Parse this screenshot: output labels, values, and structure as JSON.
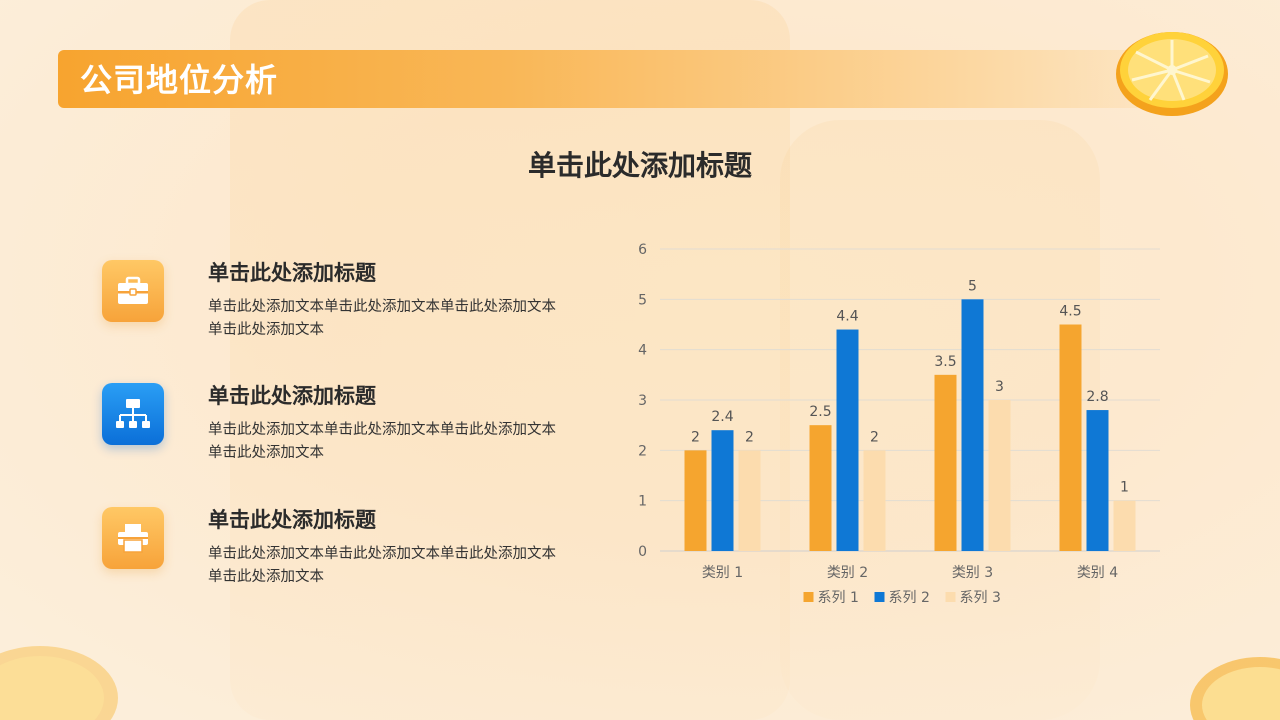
{
  "header": {
    "title": "公司地位分析"
  },
  "subtitle": "单击此处添加标题",
  "items": [
    {
      "icon": "briefcase-icon",
      "title": "单击此处添加标题",
      "text": "单击此处添加文本单击此处添加文本单击此处添加文本单击此处添加文本"
    },
    {
      "icon": "org-chart-icon",
      "title": "单击此处添加标题",
      "text": "单击此处添加文本单击此处添加文本单击此处添加文本单击此处添加文本"
    },
    {
      "icon": "printer-icon",
      "title": "单击此处添加标题",
      "text": "单击此处添加文本单击此处添加文本单击此处添加文本单击此处添加文本"
    }
  ],
  "colors": {
    "accent": "#f7a42f",
    "series1": "#f5a52f",
    "series2": "#0f78d5",
    "series3": "#fcdcae"
  },
  "chart_data": {
    "type": "bar",
    "categories": [
      "类别 1",
      "类别 2",
      "类别 3",
      "类别 4"
    ],
    "series": [
      {
        "name": "系列 1",
        "values": [
          2,
          2.5,
          3.5,
          4.5
        ]
      },
      {
        "name": "系列 2",
        "values": [
          2.4,
          4.4,
          5,
          2.8
        ]
      },
      {
        "name": "系列 3",
        "values": [
          2,
          2,
          3,
          1
        ]
      }
    ],
    "ylim": [
      0,
      6
    ],
    "yticks": [
      "0",
      "1",
      "2",
      "3",
      "4",
      "5",
      "6"
    ],
    "grid": true,
    "legend": "bottom"
  }
}
